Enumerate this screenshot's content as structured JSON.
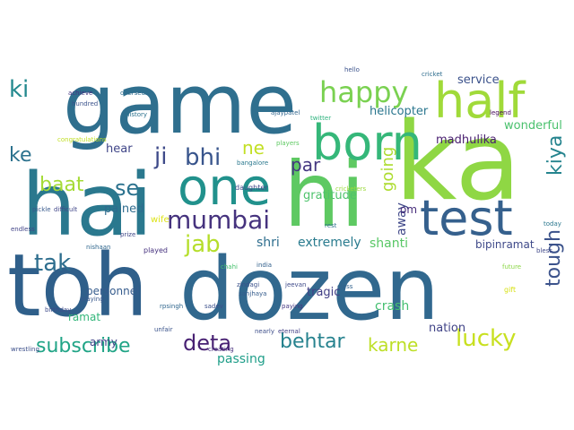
{
  "wordcloud": {
    "words": [
      {
        "text": "game",
        "color": "#2f6f8e"
      },
      {
        "text": "hai",
        "color": "#2a788e"
      },
      {
        "text": "ka",
        "color": "#8fd744"
      },
      {
        "text": "toh",
        "color": "#2f5f8a"
      },
      {
        "text": "dozen",
        "color": "#31688e"
      },
      {
        "text": "hi",
        "color": "#5ec962"
      },
      {
        "text": "half",
        "color": "#a0da39"
      },
      {
        "text": "born",
        "color": "#35b779"
      },
      {
        "text": "one",
        "color": "#21918c"
      },
      {
        "text": "test",
        "color": "#35608d"
      },
      {
        "text": "happy",
        "color": "#7ad151"
      },
      {
        "text": "mumbai",
        "color": "#46337e"
      },
      {
        "text": "bhi",
        "color": "#39558c"
      },
      {
        "text": "ji",
        "color": "#3e4a89"
      },
      {
        "text": "ne",
        "color": "#c2df23"
      },
      {
        "text": "par",
        "color": "#453781"
      },
      {
        "text": "se",
        "color": "#2c728e"
      },
      {
        "text": "ki",
        "color": "#23898e"
      },
      {
        "text": "ke",
        "color": "#2c728e"
      },
      {
        "text": "baat",
        "color": "#a5db36"
      },
      {
        "text": "tak",
        "color": "#2e6e8e"
      },
      {
        "text": "jab",
        "color": "#b5de2b"
      },
      {
        "text": "going",
        "color": "#addc30"
      },
      {
        "text": "kiya",
        "color": "#25848e"
      },
      {
        "text": "tough",
        "color": "#3b528b"
      },
      {
        "text": "subscribe",
        "color": "#20a486"
      },
      {
        "text": "deta",
        "color": "#482173"
      },
      {
        "text": "behtar",
        "color": "#26828e"
      },
      {
        "text": "karne",
        "color": "#bddf26"
      },
      {
        "text": "lucky",
        "color": "#c8e020"
      },
      {
        "text": "passing",
        "color": "#1f9e89"
      },
      {
        "text": "extremely",
        "color": "#297b8e"
      },
      {
        "text": "shri",
        "color": "#2e6e8e"
      },
      {
        "text": "shanti",
        "color": "#58c765"
      },
      {
        "text": "away",
        "color": "#3f4788"
      },
      {
        "text": "om",
        "color": "#472d7b"
      },
      {
        "text": "service",
        "color": "#3b528b"
      },
      {
        "text": "helicopter",
        "color": "#2a768e"
      },
      {
        "text": "madhulika",
        "color": "#481d6f"
      },
      {
        "text": "wonderful",
        "color": "#4ac16d"
      },
      {
        "text": "gratitude",
        "color": "#4ec36b"
      },
      {
        "text": "hear",
        "color": "#404688"
      },
      {
        "text": "pained",
        "color": "#2f6c8e"
      },
      {
        "text": "personnel",
        "color": "#365c8d"
      },
      {
        "text": "ramat",
        "color": "#32b67a"
      },
      {
        "text": "army",
        "color": "#404387"
      },
      {
        "text": "tragic",
        "color": "#424086"
      },
      {
        "text": "crash",
        "color": "#44bf70"
      },
      {
        "text": "nation",
        "color": "#414487"
      },
      {
        "text": "bipinramat",
        "color": "#3e4989"
      },
      {
        "text": "wife",
        "color": "#dde318"
      },
      {
        "text": "played",
        "color": "#46327e"
      },
      {
        "text": "daughter",
        "color": "#3f4889"
      },
      {
        "text": "achieve",
        "color": "#453581"
      },
      {
        "text": "overseas",
        "color": "#2f6c8e"
      },
      {
        "text": "hundred",
        "color": "#3b528b"
      },
      {
        "text": "congratulations",
        "color": "#c0df25"
      },
      {
        "text": "history",
        "color": "#2c728e"
      },
      {
        "text": "ajaypatel",
        "color": "#31668e"
      },
      {
        "text": "players",
        "color": "#5ec962"
      },
      {
        "text": "bangalore",
        "color": "#2a788e"
      },
      {
        "text": "cricketers",
        "color": "#9bd93c"
      },
      {
        "text": "gift",
        "color": "#d8e219"
      },
      {
        "text": "playing",
        "color": "#38588c"
      },
      {
        "text": "birthday",
        "color": "#3e4c8a"
      },
      {
        "text": "rest",
        "color": "#2d708e"
      },
      {
        "text": "prize",
        "color": "#3f4788"
      },
      {
        "text": "india",
        "color": "#34618d"
      },
      {
        "text": "zindagi",
        "color": "#3b518b"
      },
      {
        "text": "jeevan",
        "color": "#3e4a89"
      },
      {
        "text": "endless",
        "color": "#414487"
      },
      {
        "text": "nishaan",
        "color": "#31688e"
      },
      {
        "text": "bless",
        "color": "#3f4889"
      },
      {
        "text": "paying",
        "color": "#453882"
      },
      {
        "text": "chahi",
        "color": "#48c16e"
      },
      {
        "text": "difficult",
        "color": "#404688"
      },
      {
        "text": "pickle",
        "color": "#38598c"
      },
      {
        "text": "sanjhaya",
        "color": "#365d8d"
      },
      {
        "text": "rpsingh",
        "color": "#31678e"
      },
      {
        "text": "wrestling",
        "color": "#3c4f8a"
      },
      {
        "text": "creating",
        "color": "#472f7d"
      },
      {
        "text": "unfair",
        "color": "#3a538b"
      },
      {
        "text": "eternal",
        "color": "#423f85"
      },
      {
        "text": "nearly",
        "color": "#3d4e8a"
      },
      {
        "text": "today",
        "color": "#2a778e"
      },
      {
        "text": "class",
        "color": "#33628d"
      },
      {
        "text": "sadev",
        "color": "#3c508b"
      },
      {
        "text": "future",
        "color": "#8bd646"
      },
      {
        "text": "hello",
        "color": "#3b528b"
      },
      {
        "text": "cricket",
        "color": "#2e6d8e"
      },
      {
        "text": "legend",
        "color": "#46085c"
      },
      {
        "text": "twitter",
        "color": "#2db27d"
      }
    ]
  }
}
